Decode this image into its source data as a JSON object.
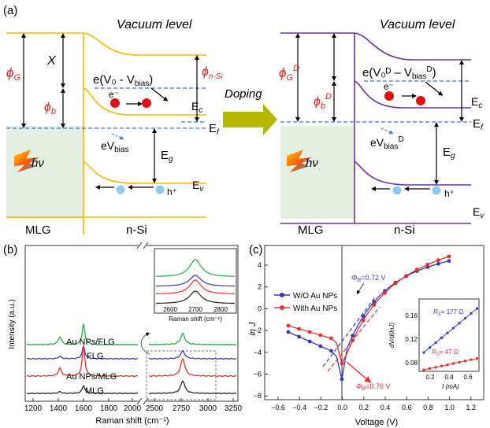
{
  "panel_a": {
    "label": "(a)",
    "vacuum_left": "Vacuum level",
    "vacuum_right": "Vacuum level",
    "doping": "Doping",
    "phi_g": "ϕ",
    "phi_g_sub": "G",
    "phi_g_sup": "D",
    "chi": "X",
    "phi_b": "ϕ",
    "phi_b_sub": "b",
    "phi_b_sup": "D",
    "phi_nsi": "ϕ",
    "phi_nsi_sub": "n-Si",
    "barrier_left": "e(V₀ - V",
    "barrier_left_sub": "bias",
    "barrier_left_end": ")",
    "barrier_right": "e(V₀ᴰ – V",
    "barrier_right_sub": "bias",
    "barrier_right_sup": "D",
    "barrier_right_end": ")",
    "e_minus": "e⁻",
    "h_plus": "h⁺",
    "ebias_left": "eV",
    "ebias_sub": "bias",
    "ebias_right_sup": "D",
    "ec": "E",
    "ec_sub": "c",
    "ef": "E",
    "ef_sub": "f",
    "eg": "E",
    "eg_sub": "g",
    "ev": "E",
    "ev_sub": "v",
    "hv": "hν",
    "mlg": "MLG",
    "nsi": "n-Si",
    "colors": {
      "left_band": "#f5b800",
      "right_band": "#7030a0",
      "phi_red": "#e02020",
      "doping_arrow": "#b5b800"
    }
  },
  "panel_b": {
    "label": "(b)",
    "ylabel": "Intensity (a.u.)",
    "xlabel": "Raman shift (cm⁻¹)",
    "inset_xlabel": "Raman shift (cm⁻¹)",
    "xticks_left": [
      "1200",
      "1400",
      "1600",
      "1800",
      "2000"
    ],
    "xticks_right": [
      "2500",
      "2750",
      "3000",
      "3250"
    ],
    "inset_xticks": [
      "2600",
      "2700",
      "2800"
    ],
    "traces": [
      {
        "name": "Au NPs/FLG",
        "color": "#22aa44"
      },
      {
        "name": "FLG",
        "color": "#3a3ab0"
      },
      {
        "name": "Au NPs/MLG",
        "color": "#e03030"
      },
      {
        "name": "MLG",
        "color": "#222222"
      }
    ]
  },
  "panel_c": {
    "label": "(c)",
    "ylabel": "ln J",
    "xlabel": "Voltage (V)",
    "xticks": [
      "−0.6",
      "−0.4",
      "−0.2",
      "0.0",
      "0.2",
      "0.4",
      "0.6",
      "0.8",
      "1.0",
      "1.2"
    ],
    "yticks": [
      "4",
      "2",
      "0",
      "−2",
      "−4",
      "−6",
      "−8"
    ],
    "legend": [
      {
        "name": "W/O Au NPs",
        "color": "#3a3ab0"
      },
      {
        "name": "With Au NPs",
        "color": "#e03030"
      }
    ],
    "phi_b_blue": "Φ",
    "phi_b_blue_sub": "B",
    "phi_b_blue_val": "=0.72 V",
    "phi_b_red": "Φ",
    "phi_b_red_sub": "B",
    "phi_b_red_val": "=0.76 V",
    "inset": {
      "ylabel": "dV/d(lnJ)",
      "xlabel": "I (mA)",
      "xticks": [
        "0.2",
        "0.4",
        "0.6"
      ],
      "yticks": [
        "0.16",
        "0.12",
        "0.08"
      ],
      "rs_blue": "R",
      "rs_blue_sub": "S",
      "rs_blue_val": "= 177 Ω",
      "rs_red": "R",
      "rs_red_sub": "S",
      "rs_red_val": "= 47 Ω"
    }
  }
}
